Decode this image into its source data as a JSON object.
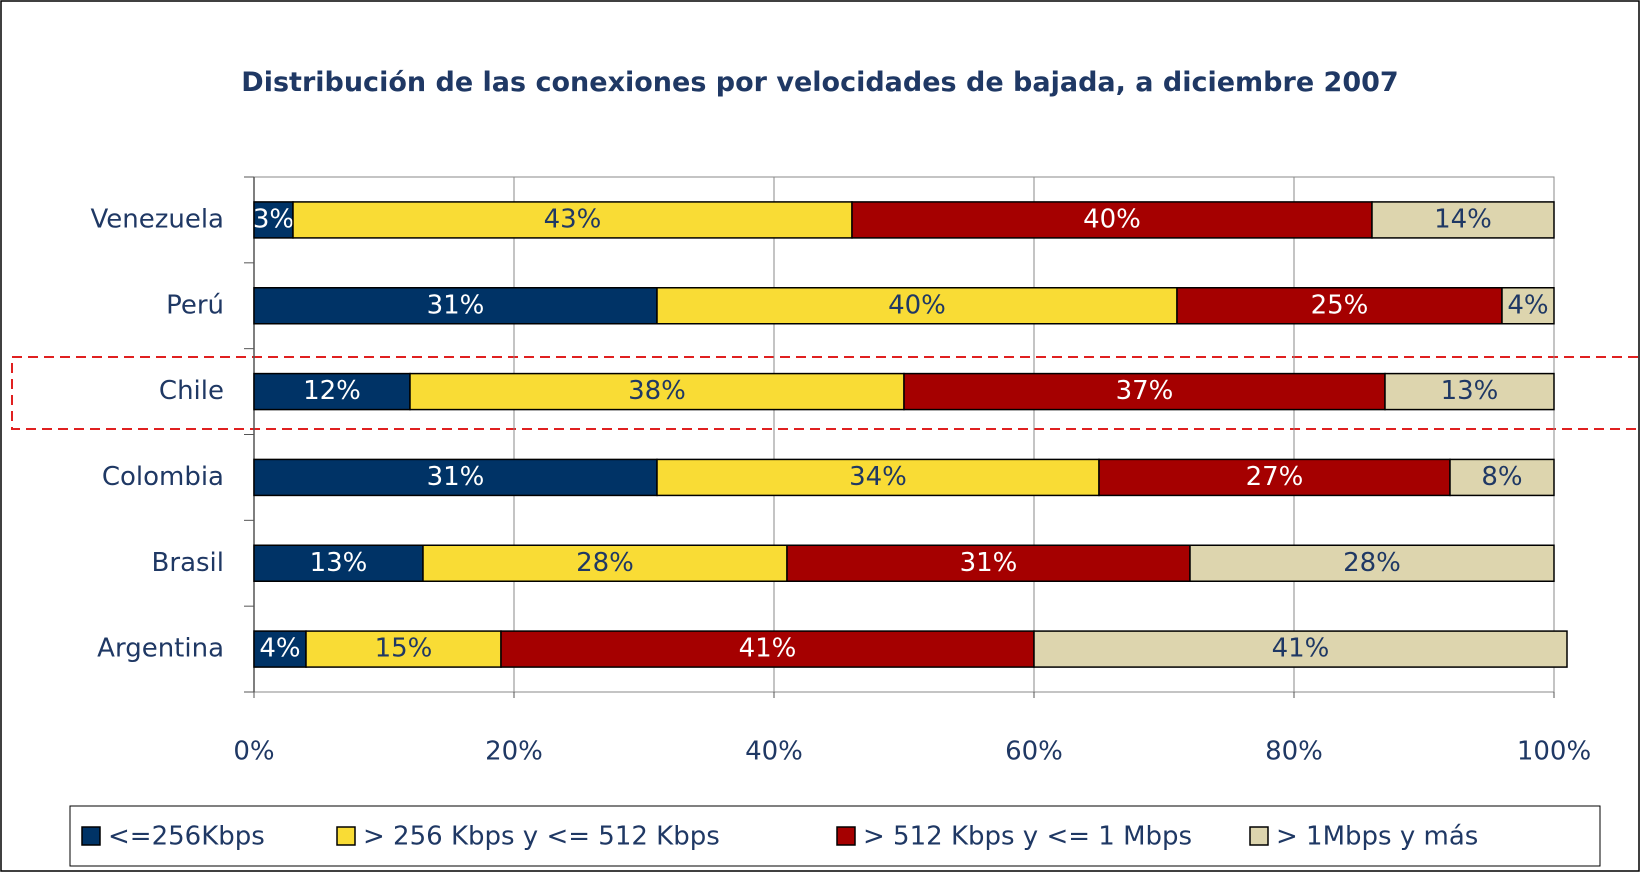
{
  "chart_data": {
    "type": "stacked_hbar",
    "title": "Distribución de las conexiones por velocidades de bajada, a diciembre 2007",
    "categories": [
      "Venezuela",
      "Perú",
      "Chile",
      "Colombia",
      "Brasil",
      "Argentina"
    ],
    "series": [
      {
        "name": "<=256Kbps",
        "color": "#003366",
        "values": [
          3,
          31,
          12,
          31,
          13,
          4
        ],
        "value_labels": [
          "3%",
          "31%",
          "12%",
          "31%",
          "13%",
          "4%"
        ]
      },
      {
        "name": "> 256 Kbps y <= 512 Kbps",
        "color": "#f9dc35",
        "values": [
          43,
          40,
          38,
          34,
          28,
          15
        ],
        "value_labels": [
          "43%",
          "40%",
          "38%",
          "34%",
          "28%",
          "15%"
        ]
      },
      {
        "name": "> 512 Kbps y <= 1 Mbps",
        "color": "#a50000",
        "values": [
          40,
          25,
          37,
          27,
          31,
          41
        ],
        "value_labels": [
          "40%",
          "25%",
          "37%",
          "27%",
          "31%",
          "41%"
        ]
      },
      {
        "name": "> 1Mbps y más",
        "color": "#ddd5ae",
        "values": [
          14,
          4,
          13,
          8,
          28,
          41
        ],
        "value_labels": [
          "14%",
          "4%",
          "13%",
          "8%",
          "28%",
          "41%"
        ]
      }
    ],
    "xlim": [
      0,
      100
    ],
    "xticks": [
      {
        "value": 0,
        "label": "0%"
      },
      {
        "value": 20,
        "label": "20%"
      },
      {
        "value": 40,
        "label": "40%"
      },
      {
        "value": 60,
        "label": "60%"
      },
      {
        "value": 80,
        "label": "80%"
      },
      {
        "value": 100,
        "label": "100%"
      }
    ],
    "grid": true,
    "legend": "bottom"
  }
}
